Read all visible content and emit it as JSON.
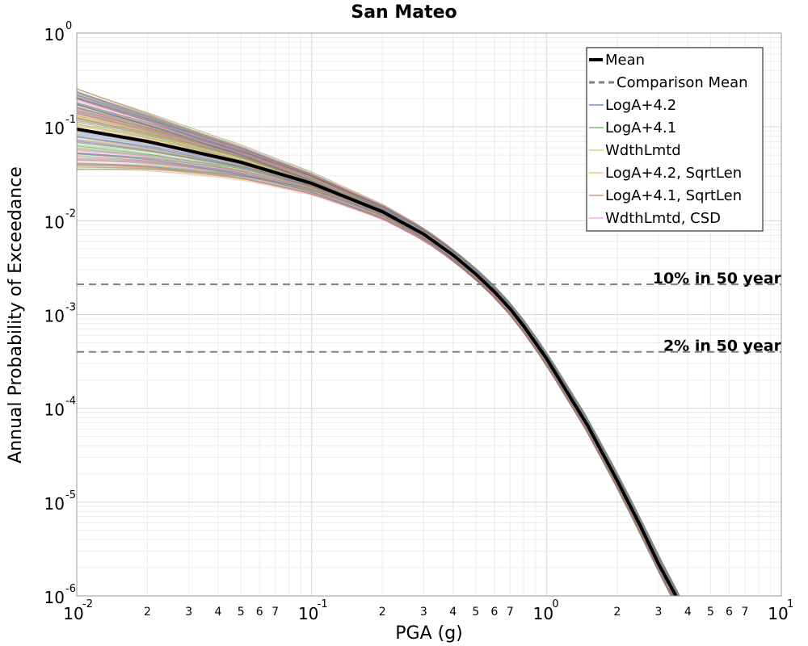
{
  "chart_data": {
    "type": "line",
    "title": "San Mateo",
    "xlabel": "PGA (g)",
    "ylabel": "Annual Probability of Exceedance",
    "x_scale": "log",
    "y_scale": "log",
    "xlim": [
      0.01,
      10
    ],
    "ylim": [
      1e-06,
      1
    ],
    "grid": true,
    "x_major_ticks": [
      {
        "base": "10",
        "exp": "-2",
        "value": 0.01
      },
      {
        "base": "10",
        "exp": "-1",
        "value": 0.1
      },
      {
        "base": "10",
        "exp": "0",
        "value": 1
      },
      {
        "base": "10",
        "exp": "1",
        "value": 10
      }
    ],
    "x_minor_tick_labels": [
      "2",
      "3",
      "4",
      "5",
      "6",
      "7"
    ],
    "y_major_ticks": [
      {
        "base": "10",
        "exp": "0",
        "value": 1
      },
      {
        "base": "10",
        "exp": "-1",
        "value": 0.1
      },
      {
        "base": "10",
        "exp": "-2",
        "value": 0.01
      },
      {
        "base": "10",
        "exp": "-3",
        "value": 0.001
      },
      {
        "base": "10",
        "exp": "-4",
        "value": 0.0001
      },
      {
        "base": "10",
        "exp": "-5",
        "value": 1e-05
      },
      {
        "base": "10",
        "exp": "-6",
        "value": 1e-06
      }
    ],
    "legend_position": "top-right",
    "legend": [
      {
        "label": "Mean",
        "color": "#000000",
        "style": "solid-thick"
      },
      {
        "label": "Comparison Mean",
        "color": "#808080",
        "style": "dashed"
      },
      {
        "label": "LogA+4.2",
        "color": "#3050c8",
        "style": "solid"
      },
      {
        "label": "LogA+4.1",
        "color": "#3a9a3a",
        "style": "solid"
      },
      {
        "label": "WdthLmtd",
        "color": "#a8c832",
        "style": "solid"
      },
      {
        "label": "LogA+4.2, SqrtLen",
        "color": "#f0a828",
        "style": "solid"
      },
      {
        "label": "LogA+4.1, SqrtLen",
        "color": "#c86432",
        "style": "solid"
      },
      {
        "label": "WdthLmtd, CSD",
        "color": "#f080f0",
        "style": "solid"
      }
    ],
    "reference_lines": [
      {
        "label": "10% in 50 year",
        "y": 0.0021,
        "color": "#808080",
        "style": "dashed"
      },
      {
        "label": "2% in 50 year",
        "y": 0.0004,
        "color": "#808080",
        "style": "dashed"
      }
    ],
    "series": [
      {
        "name": "Mean",
        "x": [
          0.01,
          0.02,
          0.05,
          0.1,
          0.2,
          0.3,
          0.4,
          0.5,
          0.6,
          0.7,
          0.8,
          1.0,
          1.5,
          2.0,
          2.5,
          3.0,
          3.5,
          3.7
        ],
        "y": [
          0.095,
          0.07,
          0.042,
          0.025,
          0.0125,
          0.0072,
          0.0043,
          0.0027,
          0.00175,
          0.00115,
          0.00075,
          0.00034,
          6.5e-05,
          1.7e-05,
          5.7e-06,
          2.2e-06,
          1.08e-06,
          8e-07
        ]
      },
      {
        "name": "Comparison Mean",
        "x": [
          0.01,
          0.02,
          0.05,
          0.1,
          0.2,
          0.3,
          0.4,
          0.5,
          0.6,
          0.7,
          0.8,
          1.0,
          1.5,
          2.0,
          2.5,
          3.0,
          3.5,
          3.7
        ],
        "y": [
          0.095,
          0.07,
          0.042,
          0.025,
          0.0125,
          0.0073,
          0.0044,
          0.0028,
          0.0018,
          0.00118,
          0.00077,
          0.00035,
          6.6e-05,
          1.65e-05,
          5.4e-06,
          2.1e-06,
          1e-06,
          7.5e-07
        ]
      }
    ]
  }
}
